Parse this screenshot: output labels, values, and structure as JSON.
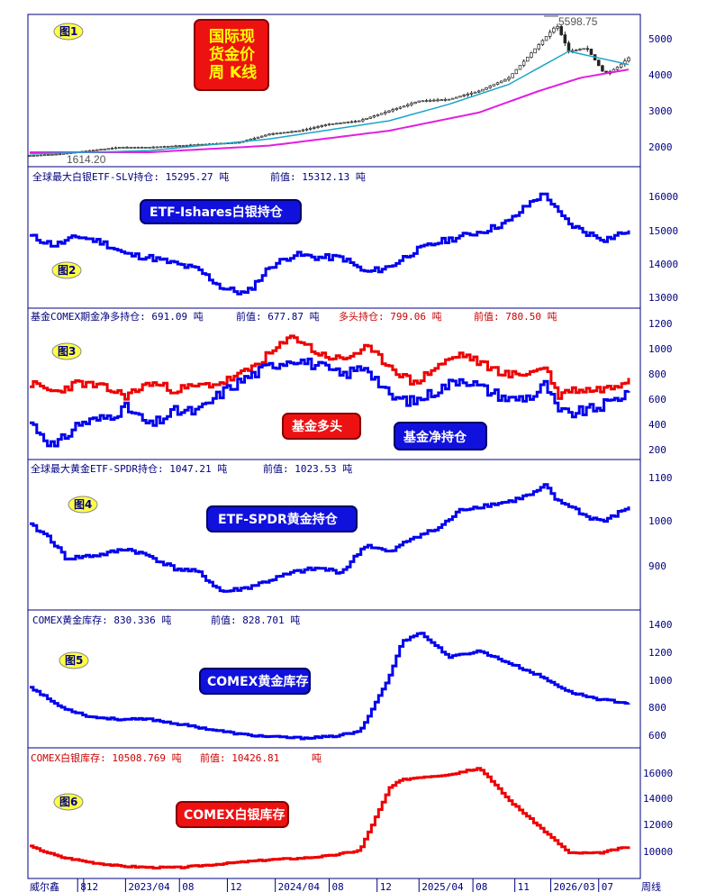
{
  "colors": {
    "frame": "#000080",
    "blue_line": "#0000ee",
    "red_line": "#ee0000",
    "ma_cyan": "#1aa6c8",
    "ma_magenta": "#e020e0",
    "candle": "#222222",
    "badge_yellow": "#ffff44",
    "box_red": "#ee1111",
    "box_blue": "#1111dd",
    "text_dark": "#000080",
    "text_red": "#cc0000"
  },
  "x_axis": {
    "tick_labels": [
      "8",
      "12",
      "2023/04",
      "08",
      "12",
      "2024/04",
      "08",
      "12",
      "2025/04",
      "08",
      "11",
      "2026/03",
      "07"
    ],
    "left_label": "威尔鑫",
    "right_label": "周线"
  },
  "panels": [
    {
      "badge": "图1",
      "title_box": [
        "国际现",
        "货金价",
        "周 K线"
      ],
      "peak_label": "5598.75",
      "low_label": "1614.20",
      "y_ticks": [
        "5000",
        "4000",
        "3000",
        "2000"
      ]
    },
    {
      "badge": "图2",
      "header": [
        "全球最大白银ETF-SLV持仓: 15295.27 吨",
        "前值: 15312.13 吨"
      ],
      "box_label": "ETF-Ishares白银持仓",
      "y_ticks": [
        "16000",
        "15000",
        "14000",
        "13000"
      ]
    },
    {
      "badge": "图3",
      "header_black": [
        "基金COMEX期金净多持仓: 691.09 吨",
        "前值: 677.87 吨"
      ],
      "header_red": [
        "多头持仓: 799.06 吨",
        "前值: 780.50 吨"
      ],
      "box_red_label": "基金多头",
      "box_blue_label": "基金净持仓",
      "y_ticks": [
        "1200",
        "1000",
        "800",
        "600",
        "400",
        "200"
      ]
    },
    {
      "badge": "图4",
      "header": [
        "全球最大黄金ETF-SPDR持仓: 1047.21 吨",
        "前值: 1023.53 吨"
      ],
      "box_label": "ETF-SPDR黄金持仓",
      "y_ticks": [
        "1100",
        "1000",
        "900"
      ]
    },
    {
      "badge": "图5",
      "header": [
        "COMEX黄金库存: 830.336 吨",
        "前值: 828.701 吨"
      ],
      "box_label": "COMEX黄金库存",
      "y_ticks": [
        "1400",
        "1200",
        "1000",
        "800",
        "600"
      ]
    },
    {
      "badge": "图6",
      "header": [
        "COMEX白银库存: 10508.769 吨",
        "前值: 10426.81",
        "吨"
      ],
      "box_label": "COMEX白银库存",
      "y_ticks": [
        "16000",
        "14000",
        "12000",
        "10000"
      ]
    }
  ],
  "chart_data": [
    {
      "type": "candlestick",
      "series": [
        {
          "kind": "close",
          "x": [
            0,
            0.05,
            0.1,
            0.15,
            0.2,
            0.25,
            0.3,
            0.35,
            0.4,
            0.45,
            0.5,
            0.55,
            0.6,
            0.65,
            0.7,
            0.75,
            0.8,
            0.85,
            0.88,
            0.9,
            0.93,
            0.96,
            0.98,
            1.0
          ],
          "values": [
            1650,
            1700,
            1800,
            1900,
            1900,
            1950,
            2000,
            2050,
            2300,
            2400,
            2600,
            2700,
            3000,
            3300,
            3350,
            3600,
            4000,
            5000,
            5598.75,
            4800,
            4900,
            4100,
            4300,
            4600
          ]
        },
        {
          "kind": "ma_short",
          "x": [
            0,
            0.2,
            0.4,
            0.6,
            0.7,
            0.8,
            0.9,
            0.95,
            1.0
          ],
          "values": [
            1700,
            1800,
            2150,
            2700,
            3200,
            3800,
            4800,
            4600,
            4400
          ]
        },
        {
          "kind": "ma_long",
          "x": [
            0,
            0.2,
            0.4,
            0.6,
            0.75,
            0.85,
            0.92,
            1.0
          ],
          "values": [
            1750,
            1750,
            1950,
            2400,
            2950,
            3600,
            4000,
            4250
          ]
        }
      ],
      "ylim": [
        1450,
        5750
      ]
    },
    {
      "type": "line",
      "series": [
        {
          "x": [
            0,
            0.04,
            0.08,
            0.12,
            0.16,
            0.2,
            0.24,
            0.28,
            0.32,
            0.36,
            0.4,
            0.44,
            0.48,
            0.52,
            0.56,
            0.6,
            0.64,
            0.68,
            0.72,
            0.76,
            0.8,
            0.84,
            0.86,
            0.88,
            0.9,
            0.93,
            0.96,
            1.0
          ],
          "values": [
            15100,
            14800,
            15100,
            14900,
            14500,
            14400,
            14200,
            14000,
            13400,
            13200,
            14100,
            14500,
            14400,
            14400,
            13900,
            14100,
            14600,
            14900,
            15100,
            15300,
            15600,
            16300,
            16500,
            15900,
            15500,
            15200,
            15000,
            15295.27
          ]
        }
      ],
      "ylim": [
        12850,
        16800
      ]
    },
    {
      "type": "line",
      "series": [
        {
          "name": "基金多头",
          "x": [
            0,
            0.04,
            0.08,
            0.12,
            0.16,
            0.2,
            0.24,
            0.28,
            0.32,
            0.36,
            0.4,
            0.44,
            0.48,
            0.52,
            0.56,
            0.6,
            0.64,
            0.68,
            0.72,
            0.76,
            0.8,
            0.84,
            0.86,
            0.88,
            0.9,
            0.94,
            0.97,
            1.0
          ],
          "values": [
            750,
            680,
            760,
            720,
            650,
            760,
            700,
            730,
            760,
            850,
            1000,
            1150,
            1000,
            950,
            1050,
            900,
            750,
            900,
            1000,
            900,
            820,
            850,
            900,
            650,
            700,
            700,
            720,
            799.06
          ]
        },
        {
          "name": "基金净持仓",
          "x": [
            0,
            0.04,
            0.08,
            0.12,
            0.16,
            0.2,
            0.24,
            0.28,
            0.32,
            0.36,
            0.4,
            0.44,
            0.48,
            0.52,
            0.56,
            0.6,
            0.64,
            0.68,
            0.72,
            0.76,
            0.8,
            0.84,
            0.86,
            0.88,
            0.9,
            0.94,
            0.97,
            1.0
          ],
          "values": [
            430,
            220,
            420,
            460,
            550,
            400,
            520,
            520,
            680,
            800,
            900,
            960,
            900,
            820,
            900,
            640,
            600,
            700,
            800,
            700,
            620,
            650,
            750,
            520,
            500,
            540,
            600,
            691.09
          ]
        }
      ],
      "ylim": [
        150,
        1260
      ]
    },
    {
      "type": "line",
      "series": [
        {
          "x": [
            0,
            0.03,
            0.06,
            0.09,
            0.12,
            0.16,
            0.2,
            0.24,
            0.28,
            0.32,
            0.36,
            0.4,
            0.44,
            0.48,
            0.52,
            0.56,
            0.6,
            0.64,
            0.68,
            0.72,
            0.76,
            0.8,
            0.84,
            0.86,
            0.88,
            0.9,
            0.93,
            0.96,
            1.0
          ],
          "values": [
            1000,
            970,
            915,
            920,
            925,
            940,
            920,
            890,
            880,
            830,
            840,
            860,
            880,
            890,
            880,
            950,
            930,
            970,
            990,
            1040,
            1050,
            1060,
            1080,
            1100,
            1060,
            1050,
            1020,
            1010,
            1047.21
          ]
        }
      ],
      "ylim": [
        800,
        1130
      ]
    },
    {
      "type": "line",
      "series": [
        {
          "x": [
            0,
            0.05,
            0.1,
            0.15,
            0.2,
            0.25,
            0.3,
            0.35,
            0.4,
            0.45,
            0.5,
            0.55,
            0.6,
            0.62,
            0.65,
            0.7,
            0.75,
            0.8,
            0.85,
            0.9,
            0.95,
            1.0
          ],
          "values": [
            960,
            800,
            720,
            700,
            700,
            660,
            620,
            580,
            560,
            550,
            560,
            600,
            1050,
            1320,
            1400,
            1200,
            1250,
            1150,
            1050,
            920,
            860,
            830.336
          ]
        }
      ],
      "ylim": [
        500,
        1470
      ]
    },
    {
      "type": "line",
      "series": [
        {
          "x": [
            0,
            0.05,
            0.1,
            0.15,
            0.2,
            0.25,
            0.3,
            0.35,
            0.4,
            0.45,
            0.5,
            0.55,
            0.6,
            0.62,
            0.65,
            0.7,
            0.75,
            0.8,
            0.85,
            0.9,
            0.95,
            1.0
          ],
          "values": [
            10500,
            9700,
            9300,
            9000,
            8900,
            8900,
            9100,
            9300,
            9500,
            9600,
            9800,
            10200,
            15000,
            15600,
            15800,
            16000,
            16500,
            14000,
            12000,
            10000,
            10000,
            10508.769
          ]
        }
      ],
      "ylim": [
        8400,
        16800
      ]
    }
  ]
}
